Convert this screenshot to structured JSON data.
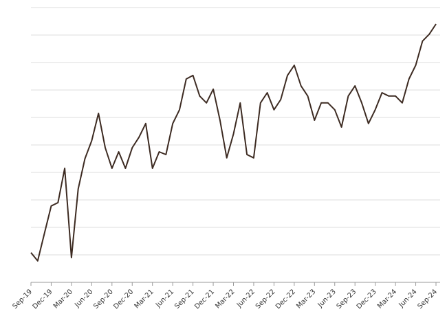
{
  "chart_data": {
    "type": "line",
    "categories": [
      "Sep-19",
      null,
      null,
      "Dec-19",
      null,
      null,
      "Mar-20",
      null,
      null,
      "Jun-20",
      null,
      null,
      "Sep-20",
      null,
      null,
      "Dec-20",
      null,
      null,
      "Mar-21",
      null,
      null,
      "Jun-21",
      null,
      null,
      "Sep-21",
      null,
      null,
      "Dec-21",
      null,
      null,
      "Mar-22",
      null,
      null,
      "Jun-22",
      null,
      null,
      "Sep-22",
      null,
      null,
      "Dec-22",
      null,
      null,
      "Mar-23",
      null,
      null,
      "Jun-23",
      null,
      null,
      "Sep-23",
      null,
      null,
      "Dec-23",
      null,
      null,
      "Mar-24",
      null,
      null,
      "Jun-24",
      null,
      null,
      "Sep-24"
    ],
    "series": [
      {
        "color": "#3d2b22",
        "values": [
          1.08,
          0.78,
          1.78,
          2.78,
          2.9,
          4.15,
          0.9,
          3.4,
          4.5,
          5.15,
          6.15,
          4.9,
          4.15,
          4.75,
          4.15,
          4.9,
          5.28,
          5.78,
          4.15,
          4.75,
          4.65,
          5.78,
          6.28,
          7.4,
          7.53,
          6.78,
          6.53,
          7.03,
          5.9,
          4.53,
          5.4,
          6.53,
          4.65,
          4.53,
          6.53,
          6.9,
          6.28,
          6.65,
          7.53,
          7.9,
          7.15,
          6.78,
          5.9,
          6.53,
          6.53,
          6.28,
          5.65,
          6.78,
          7.15,
          6.53,
          5.78,
          6.28,
          6.9,
          6.78,
          6.78,
          6.53,
          7.4,
          7.9,
          8.78,
          9.03,
          9.4
        ]
      }
    ],
    "ylim": [
      0,
      10
    ],
    "yticks": [
      0,
      1,
      2,
      3,
      4,
      5,
      6,
      7,
      8,
      9,
      10
    ],
    "grid": true
  }
}
